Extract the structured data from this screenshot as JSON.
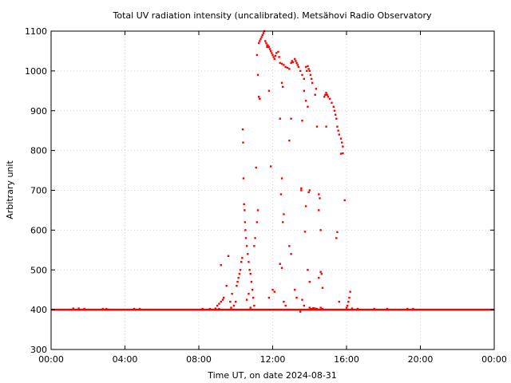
{
  "chart_data": {
    "type": "scatter",
    "title": "Total UV radiation intensity (uncalibrated). Metsähovi Radio Observatory",
    "xlabel": "Time UT, on date 2024-08-31",
    "ylabel": "Arbitrary unit",
    "x_unit": "hours",
    "xlim": [
      0,
      24
    ],
    "ylim": [
      300,
      1100
    ],
    "x_ticks": [
      {
        "value": 0,
        "label": "00:00"
      },
      {
        "value": 4,
        "label": "04:00"
      },
      {
        "value": 8,
        "label": "08:00"
      },
      {
        "value": 12,
        "label": "12:00"
      },
      {
        "value": 16,
        "label": "16:00"
      },
      {
        "value": 20,
        "label": "20:00"
      },
      {
        "value": 24,
        "label": "00:00"
      }
    ],
    "y_ticks": [
      {
        "value": 300,
        "label": "300"
      },
      {
        "value": 400,
        "label": "400"
      },
      {
        "value": 500,
        "label": "500"
      },
      {
        "value": 600,
        "label": "600"
      },
      {
        "value": 700,
        "label": "700"
      },
      {
        "value": 800,
        "label": "800"
      },
      {
        "value": 900,
        "label": "900"
      },
      {
        "value": 1000,
        "label": "1000"
      },
      {
        "value": 1100,
        "label": "1100"
      }
    ],
    "grid": true,
    "legend": false,
    "color": "#ff0000",
    "baseline": {
      "value": 400,
      "x_range": [
        0,
        24
      ]
    },
    "series": [
      {
        "points": [
          [
            1.2,
            403
          ],
          [
            1.5,
            403
          ],
          [
            1.8,
            402
          ],
          [
            2.8,
            402
          ],
          [
            3.0,
            402
          ],
          [
            4.5,
            402
          ],
          [
            4.8,
            402
          ],
          [
            8.2,
            402
          ],
          [
            8.6,
            402
          ],
          [
            8.9,
            403
          ],
          [
            9.1,
            402
          ],
          [
            9.0,
            410
          ],
          [
            9.1,
            415
          ],
          [
            9.2,
            420
          ],
          [
            9.3,
            425
          ],
          [
            9.35,
            430
          ],
          [
            9.2,
            512
          ],
          [
            9.5,
            460
          ],
          [
            9.6,
            535
          ],
          [
            9.7,
            420
          ],
          [
            9.75,
            405
          ],
          [
            9.8,
            440
          ],
          [
            9.9,
            410
          ],
          [
            10.0,
            420
          ],
          [
            10.05,
            460
          ],
          [
            10.1,
            470
          ],
          [
            10.15,
            480
          ],
          [
            10.2,
            490
          ],
          [
            10.25,
            500
          ],
          [
            10.3,
            520
          ],
          [
            10.35,
            530
          ],
          [
            10.38,
            853
          ],
          [
            10.4,
            820
          ],
          [
            10.42,
            730
          ],
          [
            10.45,
            665
          ],
          [
            10.48,
            650
          ],
          [
            10.5,
            620
          ],
          [
            10.52,
            600
          ],
          [
            10.55,
            580
          ],
          [
            10.6,
            560
          ],
          [
            10.65,
            540
          ],
          [
            10.7,
            520
          ],
          [
            10.75,
            500
          ],
          [
            10.8,
            490
          ],
          [
            10.85,
            470
          ],
          [
            10.9,
            450
          ],
          [
            10.95,
            430
          ],
          [
            11.0,
            410
          ],
          [
            10.6,
            425
          ],
          [
            10.7,
            440
          ],
          [
            10.8,
            405
          ],
          [
            11.0,
            560
          ],
          [
            11.05,
            580
          ],
          [
            11.1,
            757
          ],
          [
            11.15,
            620
          ],
          [
            11.2,
            650
          ],
          [
            11.15,
            1040
          ],
          [
            11.2,
            990
          ],
          [
            11.25,
            1070
          ],
          [
            11.3,
            1075
          ],
          [
            11.35,
            1080
          ],
          [
            11.4,
            1085
          ],
          [
            11.45,
            1090
          ],
          [
            11.5,
            1095
          ],
          [
            11.55,
            1100
          ],
          [
            11.3,
            930
          ],
          [
            11.25,
            935
          ],
          [
            11.6,
            1075
          ],
          [
            11.65,
            1070
          ],
          [
            11.7,
            1065
          ],
          [
            11.75,
            1063
          ],
          [
            11.8,
            1060
          ],
          [
            11.85,
            1055
          ],
          [
            11.9,
            1050
          ],
          [
            11.95,
            1045
          ],
          [
            12.0,
            1040
          ],
          [
            12.05,
            1035
          ],
          [
            12.1,
            1030
          ],
          [
            12.15,
            1038
          ],
          [
            12.2,
            1045
          ],
          [
            12.3,
            1048
          ],
          [
            12.35,
            1035
          ],
          [
            11.8,
            950
          ],
          [
            11.9,
            760
          ],
          [
            11.7,
            1060
          ],
          [
            12.0,
            450
          ],
          [
            12.1,
            445
          ],
          [
            11.8,
            430
          ],
          [
            12.4,
            1020
          ],
          [
            12.5,
            1018
          ],
          [
            12.6,
            1015
          ],
          [
            12.7,
            1010
          ],
          [
            12.8,
            1008
          ],
          [
            12.9,
            1005
          ],
          [
            13.0,
            1020
          ],
          [
            13.05,
            1025
          ],
          [
            13.1,
            1022
          ],
          [
            13.2,
            1030
          ],
          [
            13.25,
            1025
          ],
          [
            13.3,
            1020
          ],
          [
            13.35,
            1015
          ],
          [
            13.4,
            1010
          ],
          [
            12.5,
            970
          ],
          [
            12.55,
            960
          ],
          [
            12.9,
            825
          ],
          [
            13.0,
            880
          ],
          [
            12.4,
            880
          ],
          [
            12.5,
            730
          ],
          [
            12.45,
            690
          ],
          [
            12.6,
            640
          ],
          [
            12.55,
            620
          ],
          [
            12.4,
            515
          ],
          [
            12.5,
            505
          ],
          [
            12.9,
            560
          ],
          [
            13.0,
            540
          ],
          [
            12.6,
            420
          ],
          [
            12.7,
            410
          ],
          [
            13.2,
            450
          ],
          [
            13.3,
            430
          ],
          [
            13.6,
            425
          ],
          [
            13.7,
            410
          ],
          [
            13.5,
            395
          ],
          [
            13.5,
            1000
          ],
          [
            13.6,
            990
          ],
          [
            13.7,
            980
          ],
          [
            13.8,
            1010
          ],
          [
            13.85,
            1000
          ],
          [
            13.9,
            1012
          ],
          [
            13.95,
            1005
          ],
          [
            14.0,
            1000
          ],
          [
            14.05,
            990
          ],
          [
            14.1,
            980
          ],
          [
            14.15,
            970
          ],
          [
            13.7,
            950
          ],
          [
            13.8,
            925
          ],
          [
            13.9,
            910
          ],
          [
            13.6,
            875
          ],
          [
            13.55,
            705
          ],
          [
            13.55,
            700
          ],
          [
            13.75,
            596
          ],
          [
            13.8,
            660
          ],
          [
            13.95,
            695
          ],
          [
            14.0,
            700
          ],
          [
            13.9,
            500
          ],
          [
            14.0,
            470
          ],
          [
            14.3,
            940
          ],
          [
            14.35,
            955
          ],
          [
            14.4,
            860
          ],
          [
            14.5,
            690
          ],
          [
            14.55,
            680
          ],
          [
            14.5,
            650
          ],
          [
            14.6,
            600
          ],
          [
            14.65,
            490
          ],
          [
            14.5,
            480
          ],
          [
            14.7,
            455
          ],
          [
            14.6,
            495
          ],
          [
            14.0,
            405
          ],
          [
            14.1,
            402
          ],
          [
            14.2,
            404
          ],
          [
            14.3,
            403
          ],
          [
            14.4,
            402
          ],
          [
            14.6,
            405
          ],
          [
            14.7,
            402
          ],
          [
            14.8,
            935
          ],
          [
            14.85,
            940
          ],
          [
            14.9,
            945
          ],
          [
            14.95,
            940
          ],
          [
            15.0,
            935
          ],
          [
            15.1,
            930
          ],
          [
            15.2,
            920
          ],
          [
            15.3,
            910
          ],
          [
            15.35,
            900
          ],
          [
            15.4,
            890
          ],
          [
            15.45,
            880
          ],
          [
            15.5,
            860
          ],
          [
            15.55,
            850
          ],
          [
            15.6,
            840
          ],
          [
            15.7,
            830
          ],
          [
            15.75,
            820
          ],
          [
            15.8,
            810
          ],
          [
            14.9,
            860
          ],
          [
            15.7,
            792
          ],
          [
            15.5,
            595
          ],
          [
            15.45,
            580
          ],
          [
            15.8,
            793
          ],
          [
            15.9,
            675
          ],
          [
            15.6,
            420
          ],
          [
            16.0,
            405
          ],
          [
            16.05,
            410
          ],
          [
            16.1,
            420
          ],
          [
            16.15,
            430
          ],
          [
            16.2,
            445
          ],
          [
            16.3,
            403
          ],
          [
            16.6,
            402
          ],
          [
            17.5,
            402
          ],
          [
            18.2,
            402
          ],
          [
            19.3,
            402
          ],
          [
            19.6,
            402
          ]
        ]
      }
    ]
  }
}
